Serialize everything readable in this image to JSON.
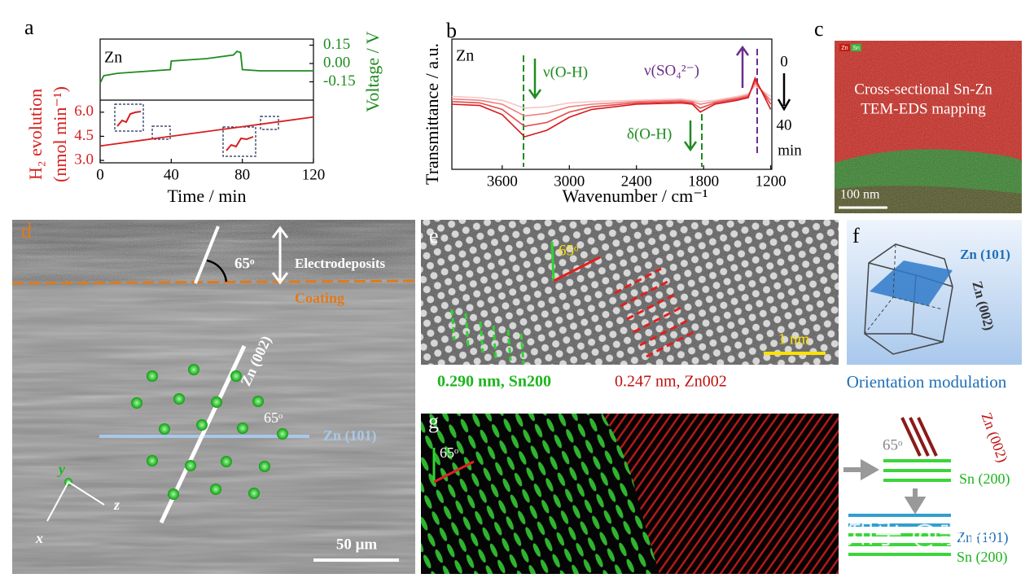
{
  "chart_data": [
    {
      "type": "line",
      "label": "Zn",
      "y_label": "Voltage / V",
      "x": [
        0,
        2,
        10,
        39.5,
        40,
        60,
        75,
        77,
        79,
        80,
        90,
        120
      ],
      "series": [
        {
          "color": "#1e8c1e",
          "axis": "y2",
          "values": [
            -0.16,
            -0.1,
            -0.08,
            -0.05,
            0.02,
            0.04,
            0.07,
            0.1,
            0.09,
            -0.05,
            -0.06,
            -0.06
          ]
        }
      ],
      "xlim": [
        0,
        120
      ],
      "y2lim": [
        -0.3,
        0.2
      ],
      "y2ticks": [
        {
          "value": 0.15,
          "label": "0.15"
        },
        {
          "value": 0,
          "label": "0.00"
        },
        {
          "value": -0.15,
          "label": "-0.15"
        }
      ]
    },
    {
      "type": "line",
      "x_label": "Time / min",
      "y_label": "H₂ evolution",
      "y_label_2": "(nmol min⁻¹)",
      "x": [
        0,
        20,
        40,
        60,
        80,
        100,
        120
      ],
      "series": [
        {
          "color": "#d62020",
          "values": [
            3.9,
            4.2,
            4.5,
            4.8,
            5.1,
            5.4,
            5.7
          ]
        }
      ],
      "xlim": [
        0,
        120
      ],
      "xticks": [
        0,
        40,
        80,
        120
      ],
      "ylim": [
        2.85,
        6.75
      ],
      "yticks": [
        {
          "value": 3,
          "label": "3.0"
        },
        {
          "value": 4.5,
          "label": "4.5"
        },
        {
          "value": 6,
          "label": "6.0"
        }
      ]
    },
    {
      "type": "line",
      "label": "Zn",
      "x_label": "Wavenumber / cm⁻¹",
      "y_label": "Transmittance / a.u.",
      "annotations": [
        "ν(O-H)",
        "ν(SO₄²⁻)",
        "δ(O-H)"
      ],
      "time_start": "0",
      "time_end": "40",
      "time_unit": "min",
      "x": [
        4050,
        3800,
        3600,
        3400,
        3200,
        3000,
        2800,
        2400,
        2000,
        1900,
        1830,
        1700,
        1500,
        1400,
        1340,
        1200
      ],
      "series": [
        {
          "color": "#f7c6c6",
          "values": [
            56,
            55,
            53,
            47,
            48,
            51,
            52,
            53,
            54,
            53,
            52,
            53,
            56,
            58,
            64,
            56
          ]
        },
        {
          "color": "#f08080",
          "values": [
            54,
            53,
            50,
            41,
            43,
            48,
            50,
            52,
            53,
            52,
            50,
            52,
            55,
            57,
            66,
            53
          ]
        },
        {
          "color": "#e34a4a",
          "values": [
            52,
            51,
            46,
            33,
            36,
            44,
            48,
            51,
            52,
            51,
            47,
            51,
            54,
            56,
            68,
            50
          ]
        },
        {
          "color": "#d7191c",
          "values": [
            50,
            49,
            42,
            25,
            30,
            40,
            46,
            50,
            51,
            50,
            44,
            50,
            53,
            55,
            70,
            46
          ]
        }
      ],
      "xlim": [
        4050,
        1190
      ],
      "xticks": [
        3600,
        3000,
        2400,
        1800,
        1200
      ],
      "ylim": [
        0,
        100
      ]
    }
  ],
  "letters": [
    "a",
    "b",
    "c",
    "d",
    "e",
    "f",
    "g"
  ],
  "c": {
    "tag_zn": "Zn",
    "tag_sn": "Sn",
    "caption_1": "Cross-sectional Sn-Zn",
    "caption_2": "TEM-EDS mapping",
    "scale": "100 nm"
  },
  "d": {
    "angle": "65ᵒ",
    "electrodeposits": "Electrodeposits",
    "coating": "Coating",
    "zn002": "Zn (002)",
    "angle_2": "65ᵒ",
    "zn101": "Zn (101)",
    "axis_y": "y",
    "axis_z": "z",
    "axis_x": "x",
    "scale": "50 μm"
  },
  "e": {
    "angle": "65ᵒ",
    "scale": "1 nm",
    "spacing_sn": "0.290 nm, Sn200",
    "spacing_zn": "0.247 nm, Zn002"
  },
  "f": {
    "zn101": "Zn (101)",
    "zn002": "Zn (002)",
    "caption": "Orientation modulation"
  },
  "g": {
    "angle": "65ᵒ",
    "angle_2": "65ᵒ",
    "zn002": "Zn (002)",
    "sn200_1": "Sn (200)",
    "zn101": "Zn (101)",
    "sn200_2": "Sn (200)"
  },
  "watermark": "知乎 @歌德"
}
